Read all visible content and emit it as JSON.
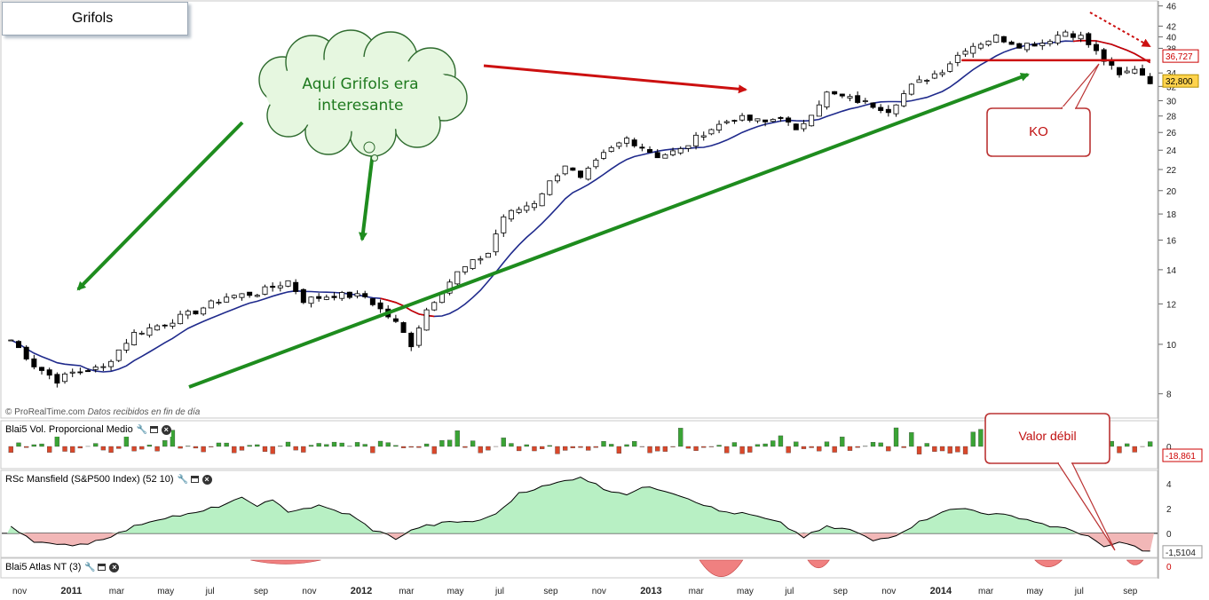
{
  "window": {
    "title": "Grifols"
  },
  "credit": {
    "source": "© ProRealTime.com",
    "note": "Datos recibidos en fin de día"
  },
  "annotations": {
    "cloud_line1": "Aquí Grifols era",
    "cloud_line2": "interesante",
    "ko_label": "KO",
    "weak_label": "Valor débil"
  },
  "colors": {
    "up_candle": "#ffffff",
    "down_candle": "#000000",
    "ma_line": "#1f2a8c",
    "ma_warn": "#cc0000",
    "green_arrow": "#1e8c1e",
    "red_arrow": "#cc1010",
    "vol_pos": "#3aa335",
    "vol_neg": "#d9482b",
    "rsc_pos_fill": "#b8f0c4",
    "rsc_neg_fill": "#f2b7b7",
    "atlas_fill": "#f08080"
  },
  "panels": [
    {
      "id": "vol",
      "label": "Blai5 Vol. Proporcional Medio"
    },
    {
      "id": "rsc",
      "label": "RSc Mansfield (S&P500 Index) (52 10)"
    },
    {
      "id": "atlas",
      "label": "Blai5 Atlas NT (3)"
    }
  ],
  "chart_data": [
    {
      "type": "candlestick",
      "title": "Grifols",
      "scale": "log",
      "y_ticks": [
        8,
        10,
        12,
        14,
        16,
        18,
        20,
        22,
        24,
        26,
        28,
        30,
        32,
        34,
        38,
        40,
        42,
        46
      ],
      "ylim": [
        7.2,
        46.5
      ],
      "x_labels": [
        "nov",
        "2011",
        "mar",
        "may",
        "jul",
        "sep",
        "nov",
        "2012",
        "mar",
        "may",
        "jul",
        "sep",
        "nov",
        "2013",
        "mar",
        "may",
        "jul",
        "sep",
        "nov",
        "2014",
        "mar",
        "may",
        "jul",
        "sep"
      ],
      "price_path": [
        [
          0,
          10.2
        ],
        [
          3,
          9.1
        ],
        [
          6,
          8.5
        ],
        [
          8,
          8.8
        ],
        [
          12,
          9.0
        ],
        [
          16,
          10.5
        ],
        [
          20,
          11.0
        ],
        [
          24,
          11.6
        ],
        [
          28,
          12.4
        ],
        [
          32,
          12.6
        ],
        [
          36,
          13.3
        ],
        [
          38,
          12.2
        ],
        [
          42,
          12.5
        ],
        [
          46,
          12.4
        ],
        [
          50,
          11.0
        ],
        [
          52,
          10.0
        ],
        [
          54,
          11.7
        ],
        [
          58,
          13.8
        ],
        [
          62,
          15.1
        ],
        [
          64,
          17.8
        ],
        [
          68,
          19.0
        ],
        [
          72,
          22.5
        ],
        [
          74,
          21.0
        ],
        [
          77,
          23.5
        ],
        [
          80,
          25.3
        ],
        [
          84,
          23.4
        ],
        [
          87,
          24.0
        ],
        [
          90,
          26.0
        ],
        [
          94,
          27.8
        ],
        [
          98,
          27.2
        ],
        [
          100,
          28.0
        ],
        [
          102,
          26.0
        ],
        [
          106,
          31.0
        ],
        [
          110,
          30.0
        ],
        [
          114,
          28.8
        ],
        [
          117,
          32.0
        ],
        [
          121,
          34.5
        ],
        [
          124,
          38.0
        ],
        [
          128,
          40.0
        ],
        [
          131,
          38.6
        ],
        [
          134,
          39.0
        ],
        [
          137,
          41.0
        ],
        [
          139,
          40.0
        ],
        [
          142,
          36.0
        ],
        [
          144,
          33.5
        ],
        [
          146,
          34.8
        ],
        [
          148,
          32.8
        ]
      ],
      "last_price": "32,800",
      "ma_last": "36,727",
      "ma_series_name": "",
      "horizontal_level": 36
    },
    {
      "type": "bar",
      "title": "Blai5 Vol. Proporcional Medio",
      "zero_label": "0",
      "last_value": "-18,861",
      "y_range": [
        -20,
        30
      ]
    },
    {
      "type": "area",
      "title": "RSc Mansfield (S&P500 Index) (52 10)",
      "y_ticks": [
        0,
        2,
        4
      ],
      "ylim": [
        -1.8,
        4.8
      ],
      "last_value": "-1,5104",
      "path": [
        [
          0,
          0.6
        ],
        [
          3,
          -0.6
        ],
        [
          6,
          -1.0
        ],
        [
          10,
          -0.8
        ],
        [
          14,
          0.0
        ],
        [
          17,
          0.8
        ],
        [
          20,
          1.3
        ],
        [
          24,
          1.6
        ],
        [
          27,
          2.2
        ],
        [
          30,
          2.8
        ],
        [
          32,
          2.3
        ],
        [
          34,
          2.6
        ],
        [
          36,
          1.8
        ],
        [
          40,
          2.2
        ],
        [
          44,
          1.5
        ],
        [
          47,
          0.3
        ],
        [
          50,
          -0.4
        ],
        [
          53,
          0.5
        ],
        [
          57,
          0.9
        ],
        [
          61,
          1.0
        ],
        [
          64,
          2.0
        ],
        [
          66,
          3.3
        ],
        [
          70,
          3.9
        ],
        [
          74,
          4.6
        ],
        [
          77,
          3.6
        ],
        [
          80,
          3.2
        ],
        [
          83,
          3.8
        ],
        [
          86,
          3.3
        ],
        [
          89,
          2.6
        ],
        [
          92,
          1.8
        ],
        [
          96,
          1.5
        ],
        [
          100,
          0.8
        ],
        [
          103,
          -0.3
        ],
        [
          106,
          0.5
        ],
        [
          109,
          0.3
        ],
        [
          112,
          -0.6
        ],
        [
          115,
          -0.1
        ],
        [
          118,
          0.9
        ],
        [
          121,
          1.8
        ],
        [
          124,
          2.0
        ],
        [
          127,
          1.6
        ],
        [
          131,
          1.3
        ],
        [
          135,
          0.6
        ],
        [
          138,
          0.2
        ],
        [
          140,
          -0.2
        ],
        [
          142,
          -1.2
        ],
        [
          144,
          -0.7
        ],
        [
          146,
          -1.1
        ],
        [
          148,
          -1.5
        ]
      ]
    },
    {
      "type": "area",
      "title": "Blai5 Atlas NT (3)",
      "zero_label": "0",
      "y_range": [
        -3,
        0.3
      ]
    }
  ]
}
